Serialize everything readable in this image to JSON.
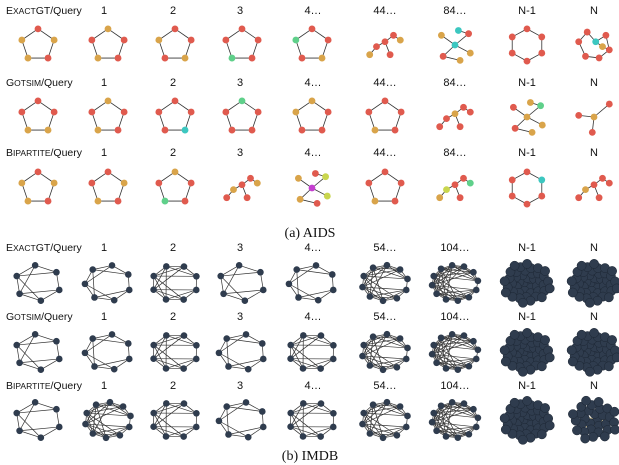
{
  "panels": [
    {
      "caption": "(a) AIDS",
      "column_labels": [
        "1",
        "2",
        "3",
        "4…",
        "44…",
        "84…",
        "N-1",
        "N"
      ],
      "rows": [
        {
          "label_caps": "Exact",
          "label_rest": "GT/Query",
          "graphs": [
            {
              "shape": "pentagon",
              "colors": [
                "red",
                "orange",
                "red",
                "orange",
                "orange"
              ]
            },
            {
              "shape": "pentagon",
              "colors": [
                "orange",
                "red",
                "red",
                "orange",
                "red"
              ]
            },
            {
              "shape": "pentagon",
              "colors": [
                "red",
                "red",
                "orange",
                "red",
                "orange"
              ]
            },
            {
              "shape": "pentagon",
              "colors": [
                "red",
                "red",
                "red",
                "green",
                "red"
              ]
            },
            {
              "shape": "pentagon",
              "colors": [
                "red",
                "red",
                "orange",
                "red",
                "green"
              ]
            },
            {
              "shape": "branched",
              "colors": [
                "orange",
                "red",
                "red",
                "red",
                "orange",
                "red"
              ]
            },
            {
              "shape": "star",
              "colors": [
                "teal",
                "red",
                "orange",
                "orange",
                "red",
                "teal",
                "orange"
              ]
            },
            {
              "shape": "hexagon",
              "colors": [
                "red",
                "red",
                "red",
                "red",
                "red",
                "red"
              ]
            },
            {
              "shape": "ringstar",
              "colors": [
                "red",
                "red",
                "teal",
                "red",
                "red",
                "red",
                "red",
                "orange"
              ]
            }
          ]
        },
        {
          "label_caps": "GOTSim",
          "label_rest": "/Query",
          "graphs": [
            {
              "shape": "pentagon",
              "colors": [
                "red",
                "red",
                "orange",
                "orange",
                "red"
              ]
            },
            {
              "shape": "pentagon",
              "colors": [
                "orange",
                "red",
                "red",
                "orange",
                "red"
              ]
            },
            {
              "shape": "pentagon",
              "colors": [
                "red",
                "red",
                "teal",
                "red",
                "red"
              ]
            },
            {
              "shape": "pentagon",
              "colors": [
                "green",
                "red",
                "red",
                "red",
                "red"
              ]
            },
            {
              "shape": "pentagon",
              "colors": [
                "orange",
                "red",
                "red",
                "red",
                "orange"
              ]
            },
            {
              "shape": "pentagon",
              "colors": [
                "red",
                "red",
                "red",
                "orange",
                "red"
              ]
            },
            {
              "shape": "branched",
              "colors": [
                "red",
                "red",
                "orange",
                "red",
                "red",
                "red"
              ]
            },
            {
              "shape": "star",
              "colors": [
                "orange",
                "green",
                "red",
                "orange",
                "red",
                "orange",
                "orange"
              ]
            },
            {
              "shape": "star3",
              "colors": [
                "orange",
                "red",
                "red",
                "red"
              ]
            }
          ]
        },
        {
          "label_caps": "Bipartite",
          "label_rest": "/Query",
          "graphs": [
            {
              "shape": "pentagon",
              "colors": [
                "red",
                "orange",
                "red",
                "orange",
                "orange"
              ]
            },
            {
              "shape": "pentagon",
              "colors": [
                "red",
                "orange",
                "red",
                "orange",
                "red"
              ]
            },
            {
              "shape": "pentagon",
              "colors": [
                "orange",
                "red",
                "red",
                "green",
                "red"
              ]
            },
            {
              "shape": "branched",
              "colors": [
                "red",
                "orange",
                "red",
                "red",
                "orange",
                "red"
              ]
            },
            {
              "shape": "star",
              "colors": [
                "magenta",
                "yellow",
                "orange",
                "yellow",
                "orange",
                "red",
                "red"
              ]
            },
            {
              "shape": "pentagon",
              "colors": [
                "red",
                "red",
                "red",
                "orange",
                "red"
              ]
            },
            {
              "shape": "branched",
              "colors": [
                "orange",
                "yellow",
                "red",
                "red",
                "green",
                "red"
              ]
            },
            {
              "shape": "hexagon",
              "colors": [
                "red",
                "teal",
                "red",
                "red",
                "red",
                "red"
              ]
            },
            {
              "shape": "branched",
              "colors": [
                "red",
                "orange",
                "red",
                "red",
                "red",
                "red"
              ]
            }
          ]
        }
      ]
    },
    {
      "caption": "(b) IMDB",
      "column_labels": [
        "1",
        "2",
        "3",
        "4…",
        "54…",
        "104…",
        "N-1",
        "N"
      ],
      "rows": [
        {
          "label_caps": "Exact",
          "label_rest": "GT/Query",
          "graphs": [
            {
              "shape": "net6"
            },
            {
              "shape": "net7"
            },
            {
              "shape": "net8"
            },
            {
              "shape": "net6"
            },
            {
              "shape": "net7"
            },
            {
              "shape": "dense10"
            },
            {
              "shape": "dense12"
            },
            {
              "shape": "blob"
            },
            {
              "shape": "blob"
            }
          ]
        },
        {
          "label_caps": "GOTSim",
          "label_rest": "/Query",
          "graphs": [
            {
              "shape": "net6"
            },
            {
              "shape": "net7"
            },
            {
              "shape": "net8"
            },
            {
              "shape": "net7"
            },
            {
              "shape": "net8"
            },
            {
              "shape": "dense10"
            },
            {
              "shape": "dense12"
            },
            {
              "shape": "blobedges"
            },
            {
              "shape": "blobedges"
            }
          ]
        },
        {
          "label_caps": "Bipartite",
          "label_rest": "/Query",
          "graphs": [
            {
              "shape": "net6"
            },
            {
              "shape": "dense10"
            },
            {
              "shape": "net8"
            },
            {
              "shape": "net7"
            },
            {
              "shape": "net8"
            },
            {
              "shape": "dense10"
            },
            {
              "shape": "dense12"
            },
            {
              "shape": "blob"
            },
            {
              "shape": "blobhub"
            }
          ]
        }
      ]
    }
  ],
  "colors": {
    "red": "#e05a4e",
    "orange": "#d9a44a",
    "green": "#5fd08a",
    "teal": "#3cc7c0",
    "yellow": "#c9d64e",
    "magenta": "#c43fd0",
    "dark": "#2f3c4e",
    "edge": "#333333"
  }
}
